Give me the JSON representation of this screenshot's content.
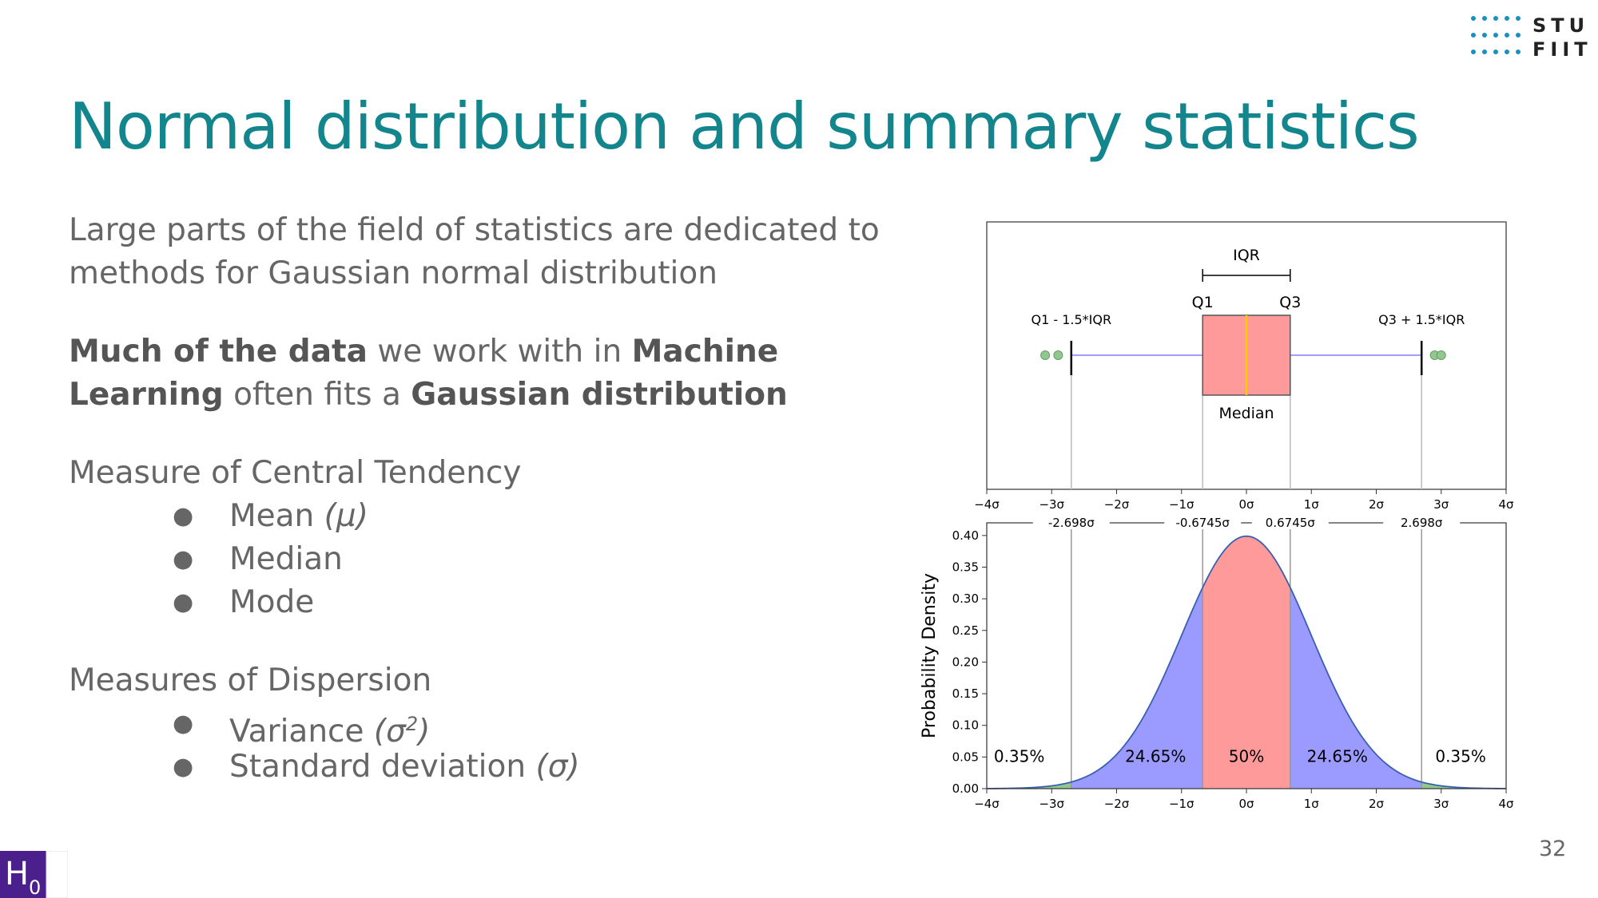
{
  "logo": {
    "line1": "STU",
    "line2": "FIIT"
  },
  "title": "Normal distribution and summary statistics",
  "intro": "Large parts of the field of statistics are dedicated to methods for Gaussian normal distribution",
  "ml_para": {
    "bold1": "Much of the data",
    "text1": " we work with in ",
    "bold2": "Machine Learning",
    "text2": " often fits a ",
    "bold3": "Gaussian distribution"
  },
  "central": {
    "heading": "Measure of Central Tendency",
    "items": [
      {
        "label": "Mean ",
        "math": "(μ)"
      },
      {
        "label": "Median"
      },
      {
        "label": "Mode"
      }
    ]
  },
  "dispersion": {
    "heading": "Measures of Dispersion",
    "items": [
      {
        "label": "Variance ",
        "math": "(σ",
        "sup": "2",
        "math_end": ")"
      },
      {
        "label": "Standard deviation ",
        "math": "(σ)"
      }
    ]
  },
  "page_number": "32",
  "h0_badge": {
    "letter": "H",
    "sub": "0"
  },
  "chart_data": [
    {
      "type": "box",
      "labels": {
        "iqr": "IQR",
        "q1": "Q1",
        "q3": "Q3",
        "lower_whisker": "Q1 - 1.5*IQR",
        "upper_whisker": "Q3 + 1.5*IQR",
        "median": "Median"
      },
      "q1": -0.6745,
      "median": 0,
      "q3": 0.6745,
      "whisker_low": -2.698,
      "whisker_high": 2.698,
      "outliers": [
        -3.1,
        -2.9,
        2.9,
        3.0
      ],
      "xlim": [
        -4,
        4
      ],
      "x_ticks": [
        "−4σ",
        "−3σ",
        "−2σ",
        "−1σ",
        "0σ",
        "1σ",
        "2σ",
        "3σ",
        "4σ"
      ],
      "colors": {
        "box": "#ff9a9a",
        "median": "#ffcc00",
        "whisker": "#8080ff",
        "outlier": "#90c890"
      }
    },
    {
      "type": "area",
      "ylabel": "Probability Density",
      "xlim": [
        -4,
        4
      ],
      "ylim": [
        0,
        0.42
      ],
      "x_ticks": [
        "−4σ",
        "−3σ",
        "−2σ",
        "−1σ",
        "0σ",
        "1σ",
        "2σ",
        "3σ",
        "4σ"
      ],
      "y_ticks": [
        "0.00",
        "0.05",
        "0.10",
        "0.15",
        "0.20",
        "0.25",
        "0.30",
        "0.35",
        "0.40"
      ],
      "top_ticks": [
        {
          "x": -2.698,
          "label": "-2.698σ"
        },
        {
          "x": -0.6745,
          "label": "-0.6745σ"
        },
        {
          "x": 0.6745,
          "label": "0.6745σ"
        },
        {
          "x": 2.698,
          "label": "2.698σ"
        }
      ],
      "regions": [
        {
          "from": -4,
          "to": -2.698,
          "color": "#90c890",
          "label": "0.35%",
          "label_x": -3.5
        },
        {
          "from": -2.698,
          "to": -0.6745,
          "color": "#9a9aff",
          "label": "24.65%",
          "label_x": -1.4
        },
        {
          "from": -0.6745,
          "to": 0.6745,
          "color": "#ff9a9a",
          "label": "50%",
          "label_x": 0
        },
        {
          "from": 0.6745,
          "to": 2.698,
          "color": "#9a9aff",
          "label": "24.65%",
          "label_x": 1.4
        },
        {
          "from": 2.698,
          "to": 4,
          "color": "#90c890",
          "label": "0.35%",
          "label_x": 3.3
        }
      ],
      "mean": 0,
      "std": 1
    }
  ]
}
